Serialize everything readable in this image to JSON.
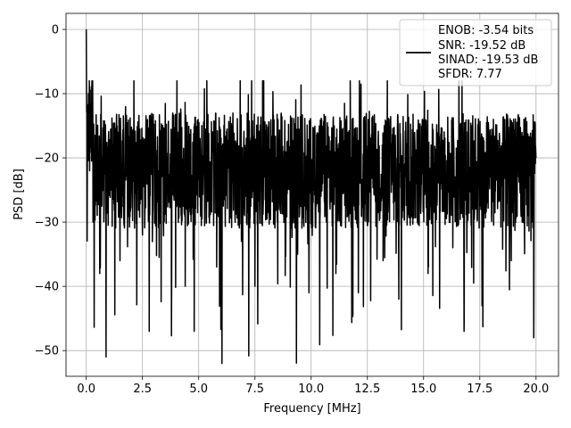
{
  "chart_data": {
    "type": "line",
    "xlabel": "Frequency [MHz]",
    "ylabel": "PSD [dB]",
    "xlim": [
      -0.9,
      21.0
    ],
    "ylim": [
      -54.0,
      2.5
    ],
    "xticks": [
      0.0,
      2.5,
      5.0,
      7.5,
      10.0,
      12.5,
      15.0,
      17.5,
      20.0
    ],
    "xtick_labels": [
      "0.0",
      "2.5",
      "5.0",
      "7.5",
      "10.0",
      "12.5",
      "15.0",
      "17.5",
      "20.0"
    ],
    "yticks": [
      0,
      -10,
      -20,
      -30,
      -40,
      -50
    ],
    "ytick_labels": [
      "0",
      "−10",
      "−20",
      "−30",
      "−40",
      "−50"
    ],
    "grid": true,
    "legend_position": "top-right",
    "line_color": "#000000",
    "legend": {
      "lines": [
        "ENOB: -3.54 bits",
        "SNR: -19.52 dB",
        "SINAD: -19.53 dB",
        "SFDR: 7.77"
      ]
    },
    "series": [
      {
        "x": [
          0.0,
          0.05,
          0.1,
          0.15,
          0.2,
          0.3,
          0.45,
          0.6,
          0.7,
          0.88,
          1.1,
          1.5,
          2.0,
          2.5,
          2.8,
          3.2,
          3.8,
          4.1,
          4.4,
          4.8,
          5.3,
          5.8,
          6.3,
          6.9,
          7.5,
          7.9,
          8.5,
          9.0,
          9.4,
          10.0,
          10.6,
          11.1,
          11.7,
          12.1,
          12.6,
          13.2,
          13.9,
          14.7,
          15.2,
          15.8,
          16.3,
          16.8,
          17.2,
          17.6,
          18.2,
          18.9,
          19.4,
          19.9,
          20.0
        ],
        "y": [
          0,
          -18,
          -10,
          -22,
          -15,
          -30,
          -24,
          -38,
          -20,
          -51,
          -25,
          -36,
          -18,
          -32,
          -47,
          -22,
          -35,
          -16,
          -40,
          -47,
          -25,
          -37,
          -20,
          -33,
          -40,
          -23,
          -30,
          -18,
          -35,
          -28,
          -22,
          -38,
          -26,
          -41,
          -20,
          -36,
          -42,
          -24,
          -38,
          -22,
          -34,
          -47,
          -28,
          -43,
          -20,
          -36,
          -30,
          -48,
          -20
        ]
      }
    ]
  }
}
